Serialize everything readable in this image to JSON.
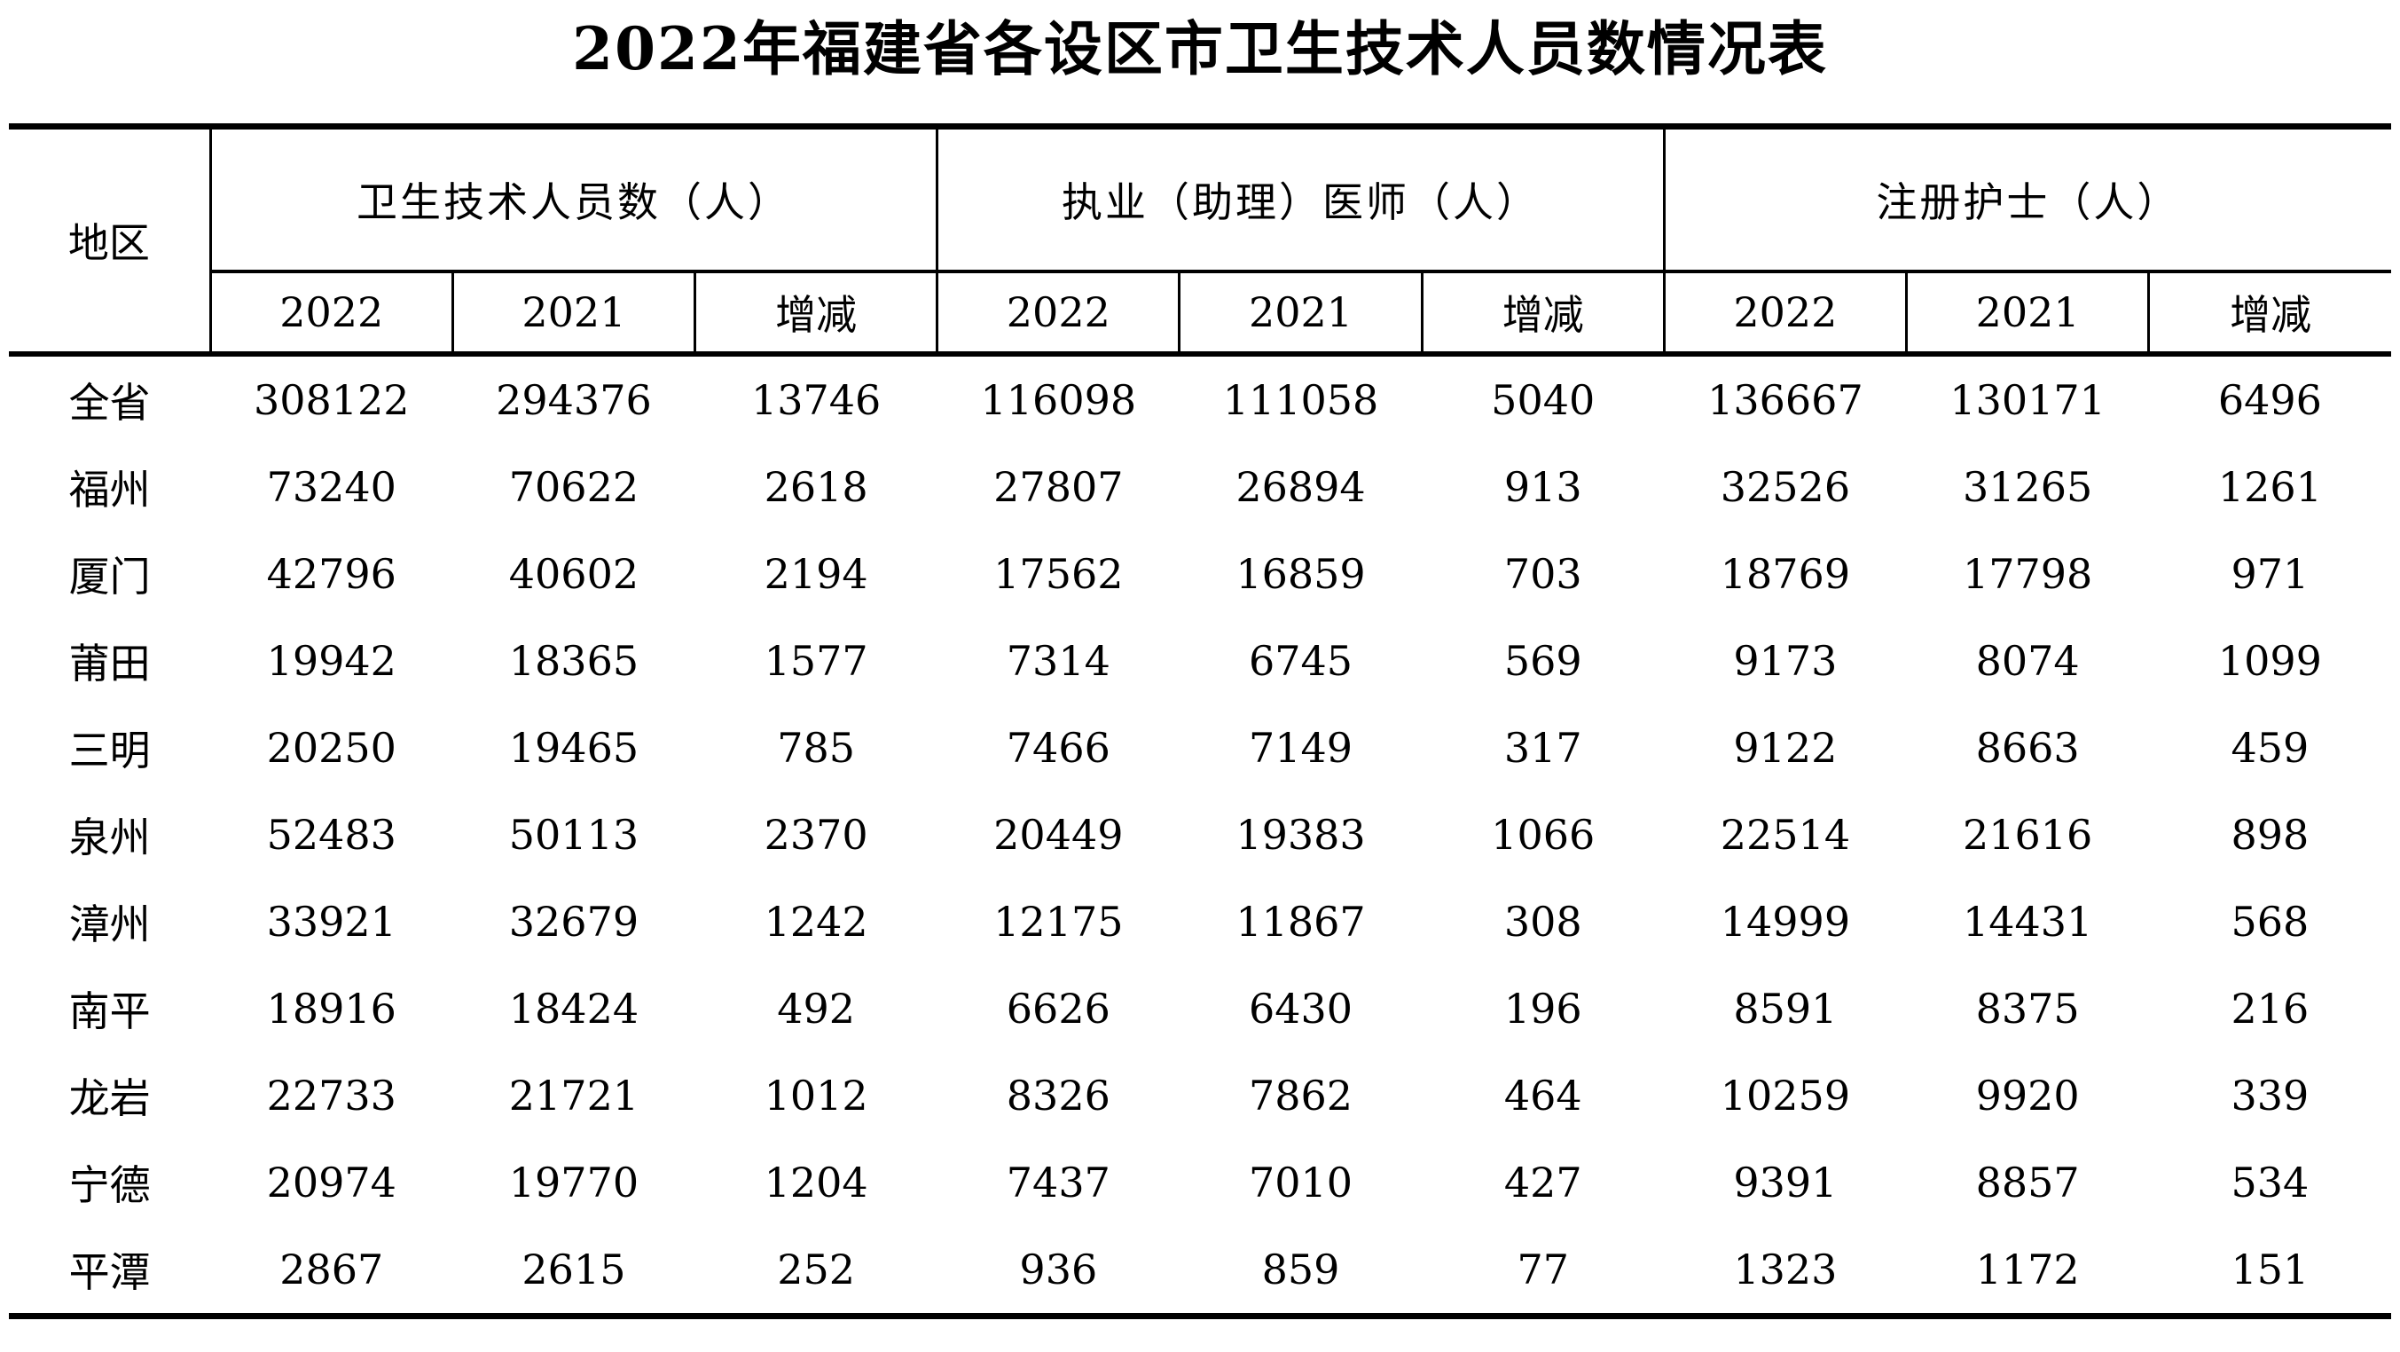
{
  "title": "2022年福建省各设区市卫生技术人员数情况表",
  "table": {
    "region_header": "地区",
    "groups": [
      {
        "label": "卫生技术人员数（人）"
      },
      {
        "label": "执业（助理）医师（人）"
      },
      {
        "label": "注册护士（人）"
      }
    ],
    "sub_headers": [
      "2022",
      "2021",
      "增减"
    ],
    "rows": [
      {
        "region": "全省",
        "values": [
          "308122",
          "294376",
          "13746",
          "116098",
          "111058",
          "5040",
          "136667",
          "130171",
          "6496"
        ]
      },
      {
        "region": "福州",
        "values": [
          "73240",
          "70622",
          "2618",
          "27807",
          "26894",
          "913",
          "32526",
          "31265",
          "1261"
        ]
      },
      {
        "region": "厦门",
        "values": [
          "42796",
          "40602",
          "2194",
          "17562",
          "16859",
          "703",
          "18769",
          "17798",
          "971"
        ]
      },
      {
        "region": "莆田",
        "values": [
          "19942",
          "18365",
          "1577",
          "7314",
          "6745",
          "569",
          "9173",
          "8074",
          "1099"
        ]
      },
      {
        "region": "三明",
        "values": [
          "20250",
          "19465",
          "785",
          "7466",
          "7149",
          "317",
          "9122",
          "8663",
          "459"
        ]
      },
      {
        "region": "泉州",
        "values": [
          "52483",
          "50113",
          "2370",
          "20449",
          "19383",
          "1066",
          "22514",
          "21616",
          "898"
        ]
      },
      {
        "region": "漳州",
        "values": [
          "33921",
          "32679",
          "1242",
          "12175",
          "11867",
          "308",
          "14999",
          "14431",
          "568"
        ]
      },
      {
        "region": "南平",
        "values": [
          "18916",
          "18424",
          "492",
          "6626",
          "6430",
          "196",
          "8591",
          "8375",
          "216"
        ]
      },
      {
        "region": "龙岩",
        "values": [
          "22733",
          "21721",
          "1012",
          "8326",
          "7862",
          "464",
          "10259",
          "9920",
          "339"
        ]
      },
      {
        "region": "宁德",
        "values": [
          "20974",
          "19770",
          "1204",
          "7437",
          "7010",
          "427",
          "9391",
          "8857",
          "534"
        ]
      },
      {
        "region": "平潭",
        "values": [
          "2867",
          "2615",
          "252",
          "936",
          "859",
          "77",
          "1323",
          "1172",
          "151"
        ]
      }
    ]
  }
}
